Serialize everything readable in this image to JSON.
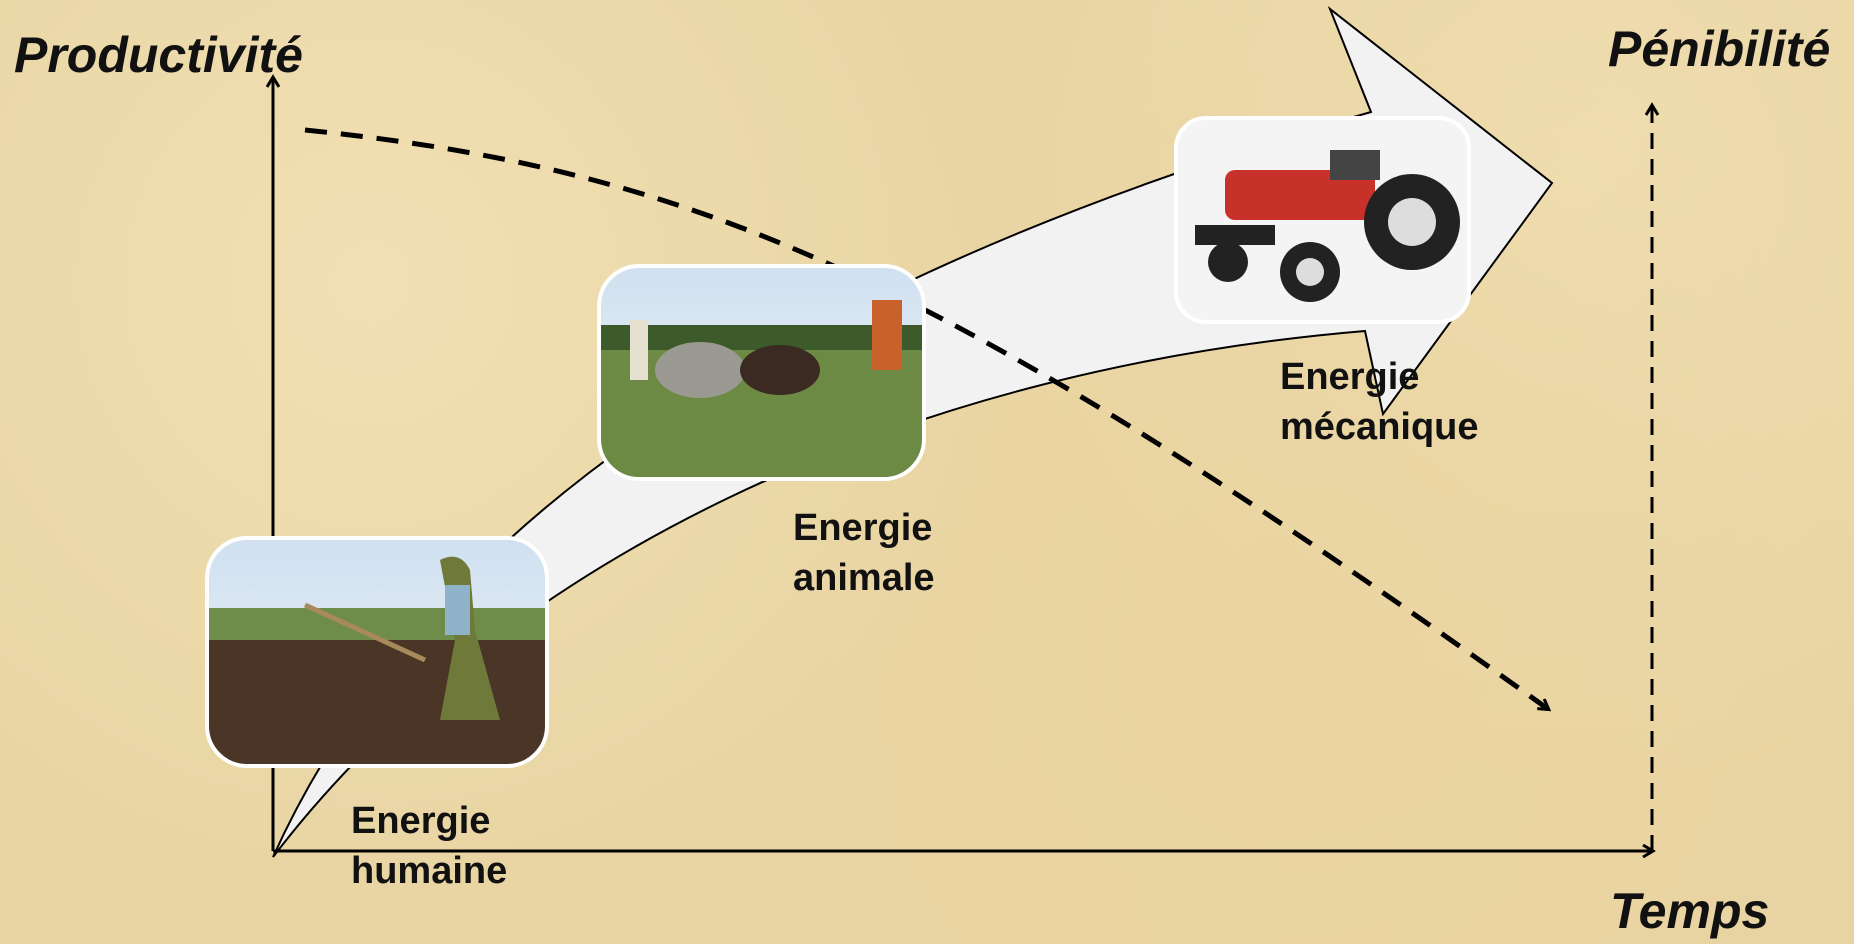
{
  "axes": {
    "left": "Productivité",
    "right": "Pénibilité",
    "bottom": "Temps"
  },
  "stages": [
    {
      "label": "Energie humaine"
    },
    {
      "label": "Energie animale"
    },
    {
      "label": "Energie mécanique"
    }
  ]
}
